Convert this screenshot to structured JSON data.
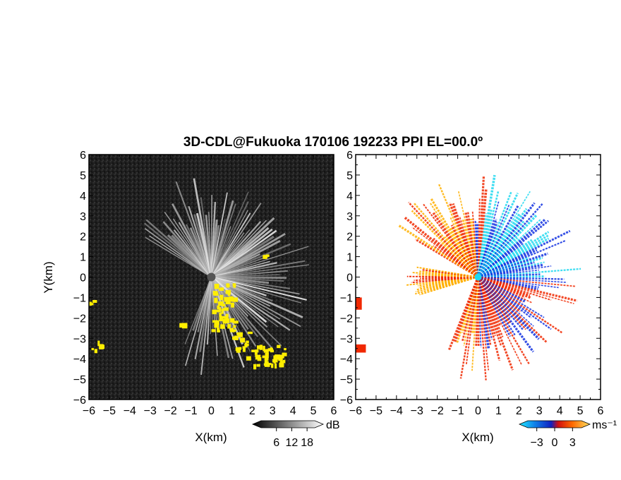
{
  "title": "3D-CDL@Fukuoka 170106 192233 PPI EL=00.0º",
  "colors": {
    "background": "#ffffff",
    "panel_dark": "#1c1c1c",
    "highlight": "#ffee00",
    "velocity_negative_strong": "#1030e0",
    "velocity_negative_weak": "#20d8f0",
    "velocity_positive_weak": "#ffb000",
    "velocity_positive_strong": "#f02800"
  },
  "chart_data": [
    {
      "type": "heatmap",
      "name": "panel-snr",
      "xlabel": "X(km)",
      "ylabel": "Y(km)",
      "xlim": [
        -6,
        6
      ],
      "ylim": [
        -6,
        6
      ],
      "xticks": [
        -6,
        -5,
        -4,
        -3,
        -2,
        -1,
        0,
        1,
        2,
        3,
        4,
        5,
        6
      ],
      "yticks": [
        -6,
        -5,
        -4,
        -3,
        -2,
        -1,
        0,
        1,
        2,
        3,
        4,
        5,
        6
      ],
      "colorbar": {
        "unit": "dB",
        "ticks": [
          6,
          12,
          18
        ]
      },
      "yellow_regions": [
        {
          "x": [
            0.0,
            1.1
          ],
          "y": [
            -2.6,
            -0.3
          ]
        },
        {
          "x": [
            1.0,
            1.8
          ],
          "y": [
            -3.5,
            -2.6
          ]
        },
        {
          "x": [
            1.7,
            3.6
          ],
          "y": [
            -4.3,
            -3.3
          ]
        },
        {
          "x": [
            -6.0,
            -5.8
          ],
          "y": [
            -1.6,
            -1.1
          ]
        },
        {
          "x": [
            -6.0,
            -5.5
          ],
          "y": [
            -3.6,
            -3.1
          ]
        },
        {
          "x": [
            -1.6,
            -1.4
          ],
          "y": [
            -2.3,
            -2.1
          ]
        },
        {
          "x": [
            2.5,
            2.7
          ],
          "y": [
            1.0,
            1.2
          ]
        }
      ]
    },
    {
      "type": "heatmap",
      "name": "panel-velocity",
      "xlabel": "X(km)",
      "ylabel": "",
      "xlim": [
        -6,
        6
      ],
      "ylim": [
        -6,
        6
      ],
      "xticks": [
        -6,
        -5,
        -4,
        -3,
        -2,
        -1,
        0,
        1,
        2,
        3,
        4,
        5,
        6
      ],
      "yticks": [
        -6,
        -5,
        -4,
        -3,
        -2,
        -1,
        0,
        1,
        2,
        3,
        4,
        5,
        6
      ],
      "colorbar": {
        "unit": "ms⁻¹",
        "ticks": [
          -3,
          0,
          3
        ]
      }
    }
  ]
}
